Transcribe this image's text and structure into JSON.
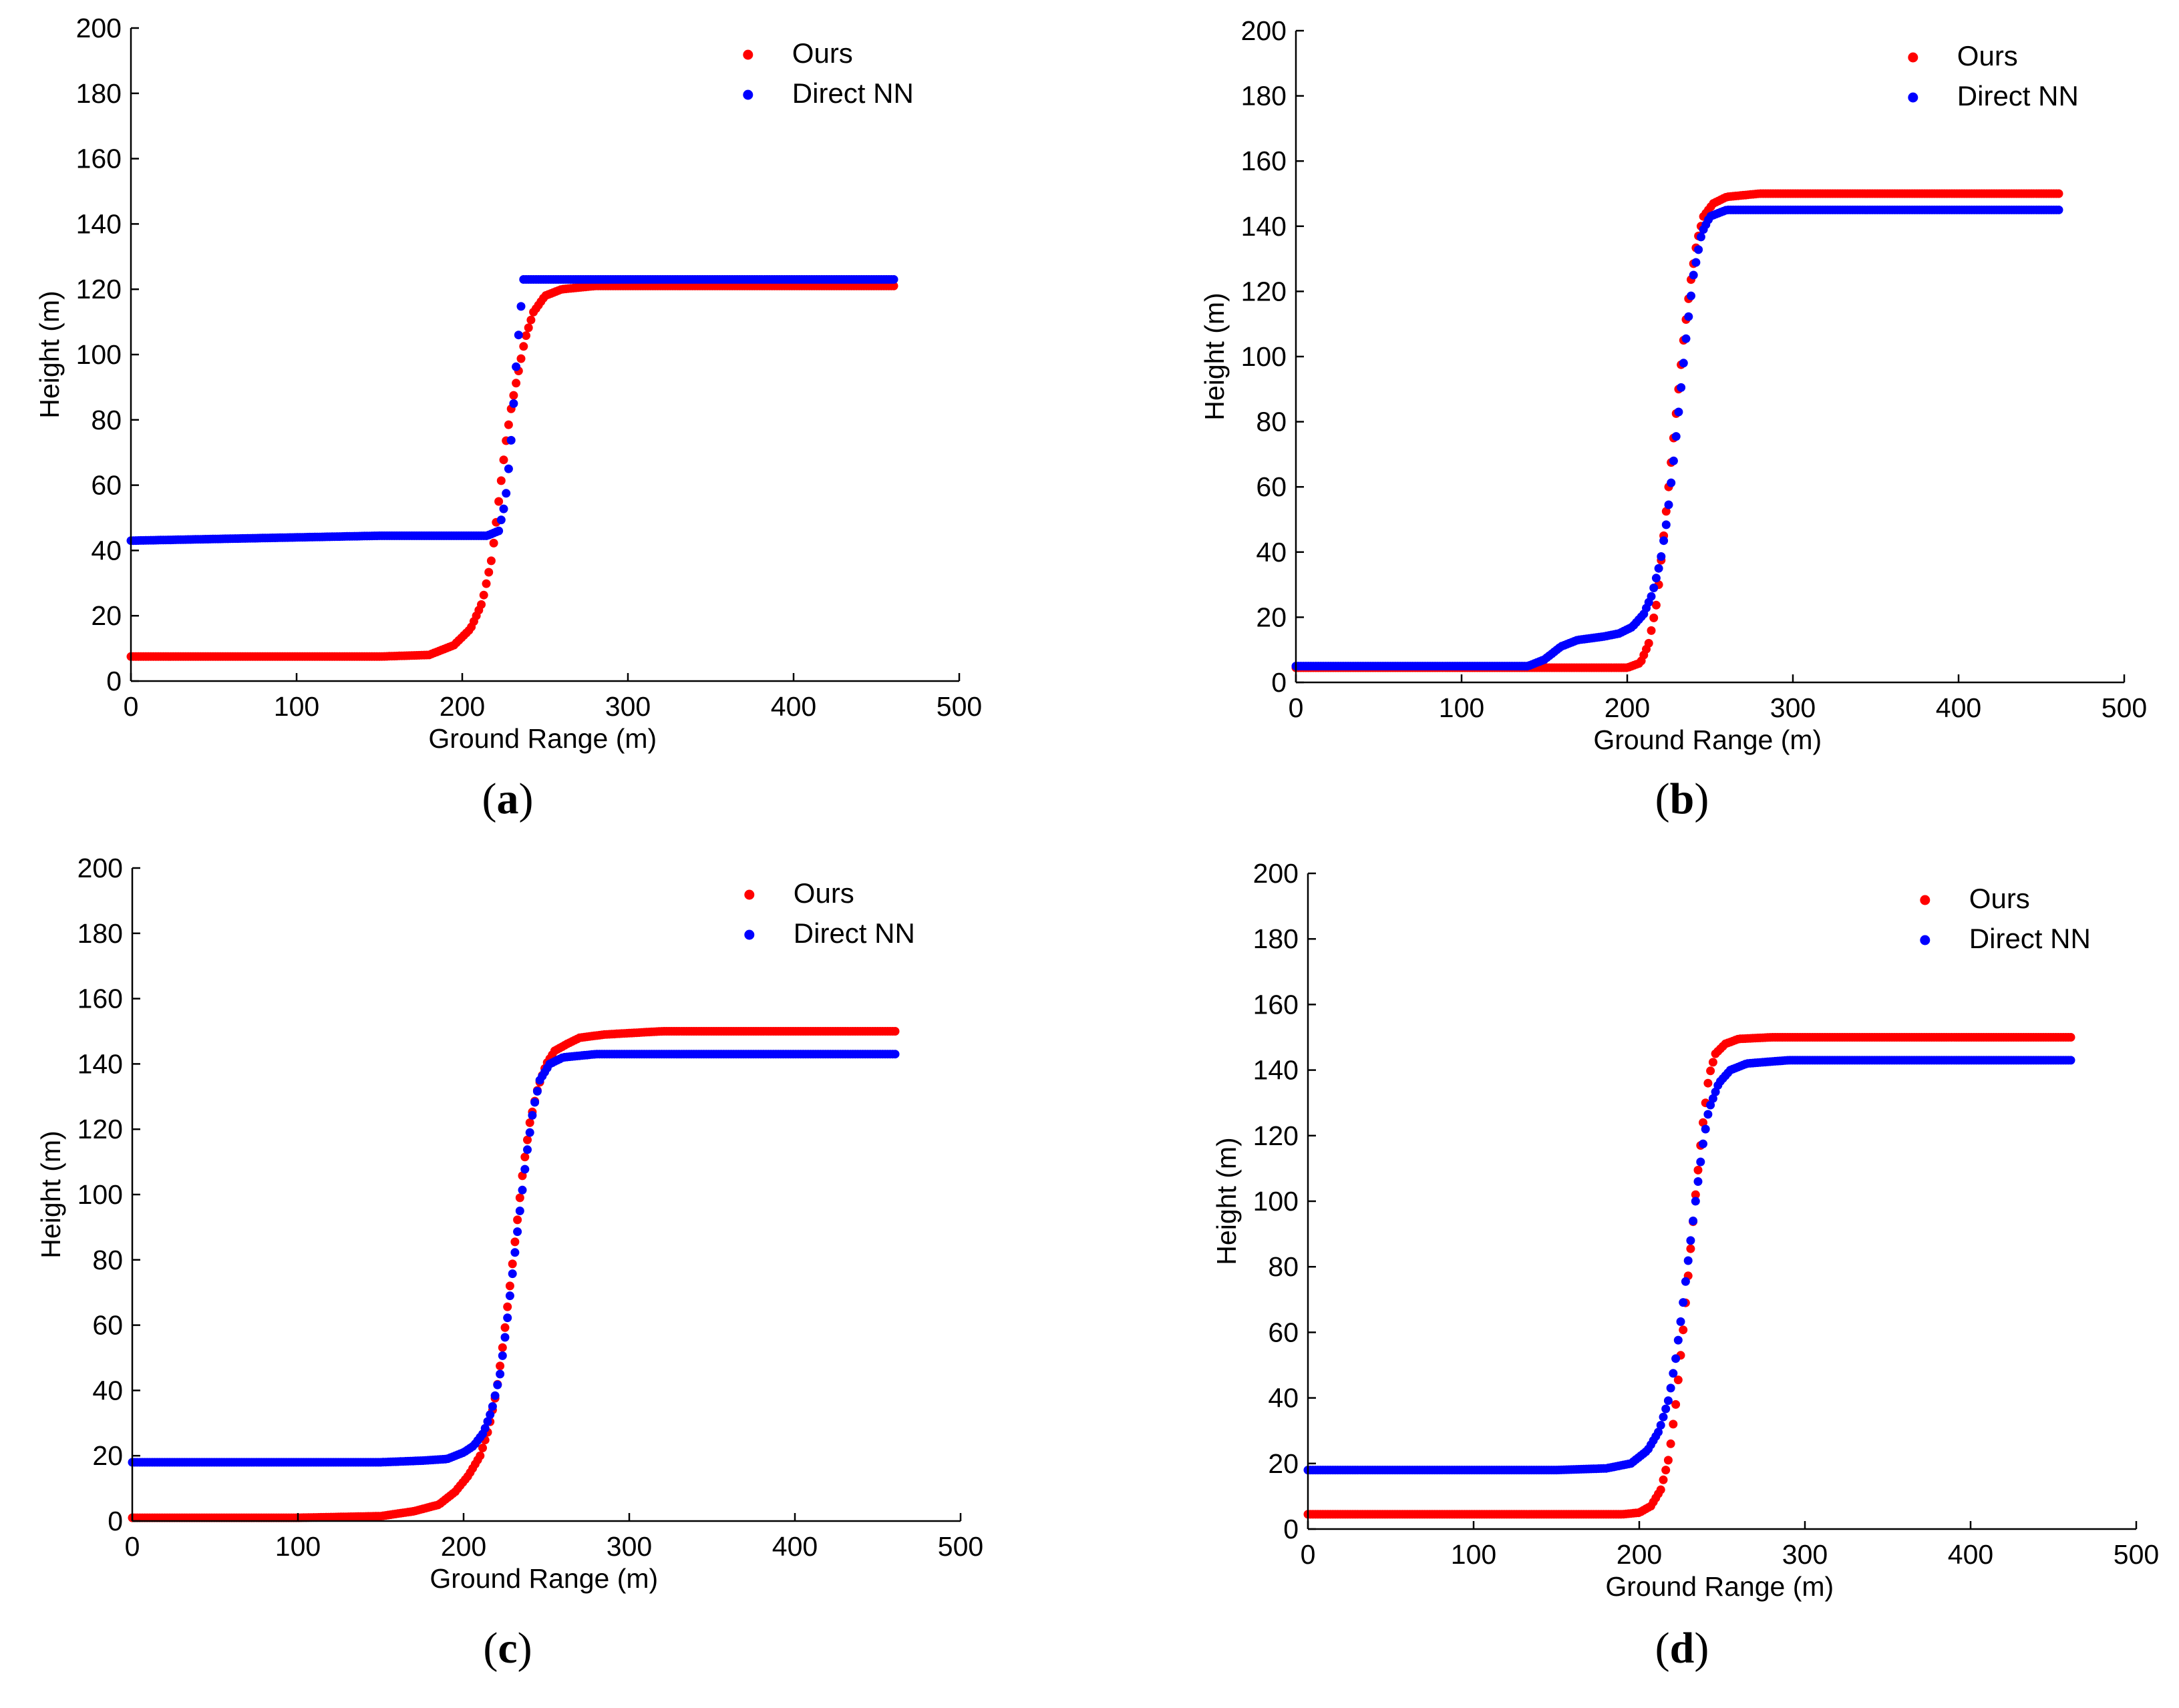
{
  "figure": {
    "background": "#ffffff"
  },
  "chart_data": [
    {
      "type": "scatter",
      "panel": "a",
      "xlabel": "Ground Range (m)",
      "ylabel": "Height (m)",
      "xlim": [
        0,
        500
      ],
      "ylim": [
        0,
        200
      ],
      "xticks": [
        0,
        100,
        200,
        300,
        400,
        500
      ],
      "yticks": [
        0,
        20,
        40,
        60,
        80,
        100,
        120,
        140,
        160,
        180,
        200
      ],
      "legend_position": "top-right",
      "series": [
        {
          "name": "Ours",
          "color": "#ff0000",
          "x": [
            0,
            50,
            100,
            150,
            180,
            195,
            205,
            212,
            218,
            222,
            226,
            230,
            234,
            238,
            243,
            250,
            260,
            280,
            320,
            380,
            461
          ],
          "y": [
            7.5,
            7.5,
            7.5,
            7.5,
            8,
            11,
            16,
            24,
            38,
            55,
            72,
            85,
            95,
            105,
            113,
            118,
            120,
            121,
            121,
            121,
            121
          ]
        },
        {
          "name": "Direct NN",
          "color": "#0000ff",
          "x": [
            0,
            50,
            100,
            150,
            200,
            215,
            222,
            226,
            229,
            231,
            233,
            235,
            237,
            240,
            250,
            300,
            400,
            461
          ],
          "y": [
            43,
            43.5,
            44,
            44.5,
            44.5,
            44.5,
            46,
            55,
            70,
            85,
            100,
            112,
            123,
            123,
            123,
            123,
            123,
            123
          ]
        }
      ]
    },
    {
      "type": "scatter",
      "panel": "b",
      "xlabel": "Ground Range (m)",
      "ylabel": "Height (m)",
      "xlim": [
        0,
        500
      ],
      "ylim": [
        0,
        200
      ],
      "xticks": [
        0,
        100,
        200,
        300,
        400,
        500
      ],
      "yticks": [
        0,
        20,
        40,
        60,
        80,
        100,
        120,
        140,
        160,
        180,
        200
      ],
      "legend_position": "top-right",
      "series": [
        {
          "name": "Ours",
          "color": "#ff0000",
          "x": [
            0,
            50,
            100,
            150,
            200,
            208,
            213,
            218,
            222,
            226,
            230,
            234,
            238,
            242,
            246,
            252,
            260,
            280,
            350,
            461
          ],
          "y": [
            4.5,
            4.5,
            4.5,
            4.5,
            4.5,
            6,
            12,
            25,
            45,
            65,
            85,
            105,
            122,
            135,
            143,
            147,
            149,
            150,
            150,
            150
          ]
        },
        {
          "name": "Direct NN",
          "color": "#0000ff",
          "x": [
            0,
            50,
            100,
            140,
            150,
            160,
            170,
            185,
            195,
            203,
            210,
            215,
            220,
            224,
            228,
            232,
            236,
            240,
            245,
            250,
            260,
            300,
            400,
            461
          ],
          "y": [
            5,
            5,
            5,
            5,
            7,
            11,
            13,
            14,
            15,
            17,
            21,
            27,
            37,
            50,
            68,
            88,
            108,
            125,
            138,
            143,
            145,
            145,
            145,
            145
          ]
        }
      ]
    },
    {
      "type": "scatter",
      "panel": "c",
      "xlabel": "Ground Range (m)",
      "ylabel": "Height (m)",
      "xlim": [
        0,
        500
      ],
      "ylim": [
        0,
        200
      ],
      "xticks": [
        0,
        100,
        200,
        300,
        400,
        500
      ],
      "yticks": [
        0,
        20,
        40,
        60,
        80,
        100,
        120,
        140,
        160,
        180,
        200
      ],
      "legend_position": "top-right",
      "series": [
        {
          "name": "Ours",
          "color": "#ff0000",
          "x": [
            0,
            50,
            100,
            150,
            170,
            185,
            195,
            203,
            210,
            215,
            220,
            224,
            228,
            232,
            236,
            240,
            245,
            250,
            255,
            262,
            270,
            285,
            320,
            400,
            461
          ],
          "y": [
            1,
            1,
            1,
            1.5,
            3,
            5,
            9,
            14,
            20,
            28,
            40,
            55,
            72,
            90,
            108,
            122,
            133,
            140,
            144,
            146,
            148,
            149,
            150,
            150,
            150
          ]
        },
        {
          "name": "Direct NN",
          "color": "#0000ff",
          "x": [
            0,
            50,
            100,
            150,
            175,
            190,
            200,
            206,
            212,
            217,
            222,
            226,
            230,
            234,
            238,
            242,
            246,
            252,
            260,
            280,
            350,
            461
          ],
          "y": [
            18,
            18,
            18,
            18,
            18.5,
            19,
            21,
            23,
            27,
            34,
            45,
            60,
            78,
            95,
            112,
            126,
            135,
            140,
            142,
            143,
            143,
            143
          ]
        }
      ]
    },
    {
      "type": "scatter",
      "panel": "d",
      "xlabel": "Ground Range (m)",
      "ylabel": "Height (m)",
      "xlim": [
        0,
        500
      ],
      "ylim": [
        0,
        200
      ],
      "xticks": [
        0,
        100,
        200,
        300,
        400,
        500
      ],
      "yticks": [
        0,
        20,
        40,
        60,
        80,
        100,
        120,
        140,
        160,
        180,
        200
      ],
      "legend_position": "top-right",
      "series": [
        {
          "name": "Ours",
          "color": "#ff0000",
          "x": [
            0,
            50,
            100,
            150,
            190,
            200,
            207,
            213,
            218,
            222,
            226,
            230,
            234,
            238,
            242,
            246,
            252,
            260,
            280,
            350,
            461
          ],
          "y": [
            4.5,
            4.5,
            4.5,
            4.5,
            4.5,
            5,
            7,
            12,
            22,
            38,
            58,
            80,
            102,
            122,
            138,
            145,
            148,
            149.5,
            150,
            150,
            150
          ]
        },
        {
          "name": "Direct NN",
          "color": "#0000ff",
          "x": [
            0,
            50,
            100,
            150,
            180,
            195,
            205,
            212,
            218,
            222,
            226,
            230,
            234,
            238,
            242,
            248,
            255,
            265,
            290,
            350,
            461
          ],
          "y": [
            18,
            18,
            18,
            18,
            18.5,
            20,
            24,
            30,
            40,
            52,
            67,
            84,
            100,
            116,
            128,
            136,
            140,
            142,
            143,
            143,
            143
          ]
        }
      ]
    }
  ],
  "panel_labels": {
    "a": {
      "open": "(",
      "letter": "a",
      "close": ")"
    },
    "b": {
      "open": "(",
      "letter": "b",
      "close": ")"
    },
    "c": {
      "open": "(",
      "letter": "c",
      "close": ")"
    },
    "d": {
      "open": "(",
      "letter": "d",
      "close": ")"
    }
  }
}
